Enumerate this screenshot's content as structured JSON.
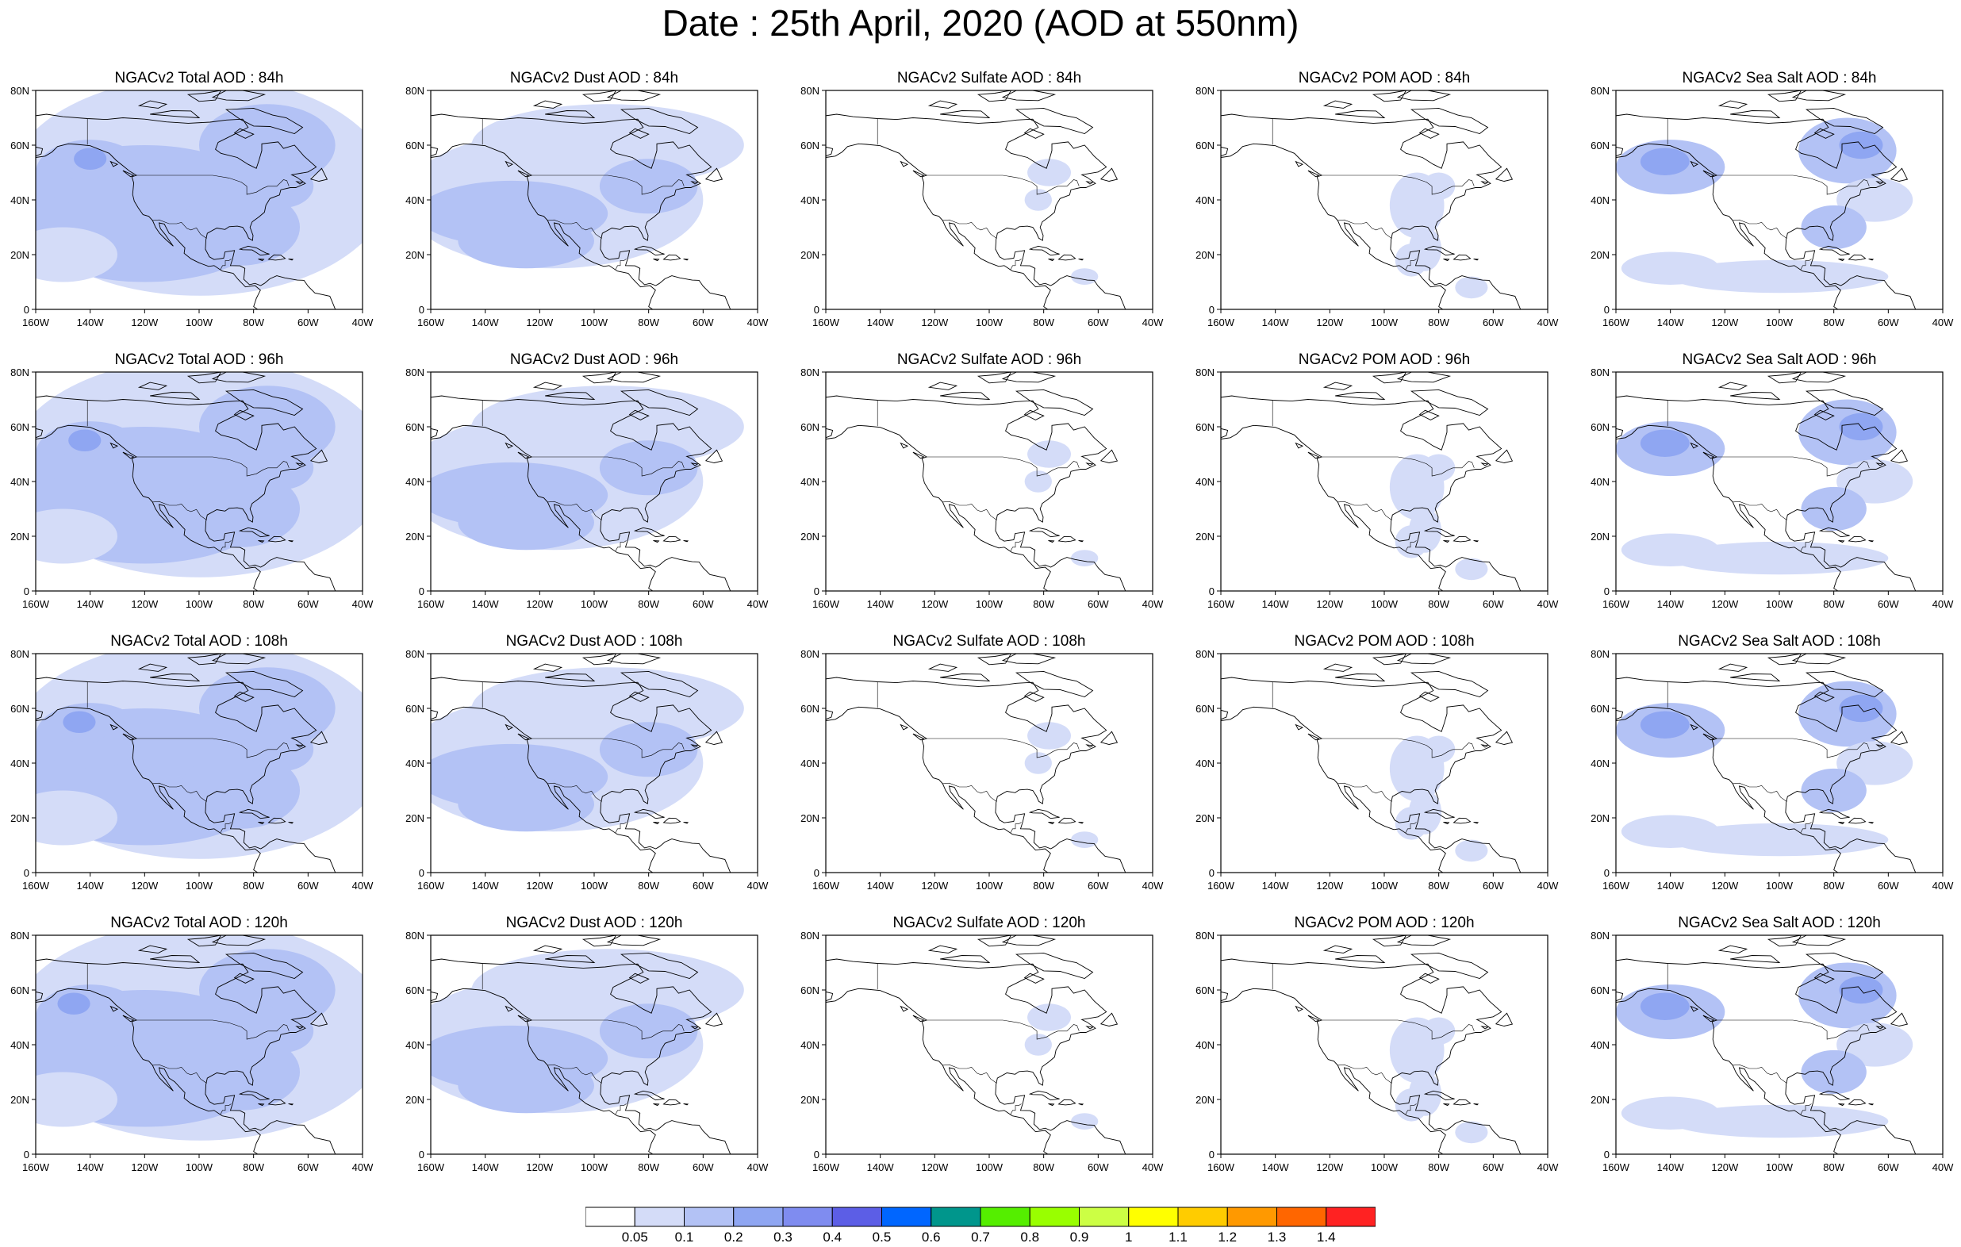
{
  "title": "Date : 25th April, 2020 (AOD at 550nm)",
  "axes": {
    "x_ticks": [
      "160W",
      "140W",
      "120W",
      "100W",
      "80W",
      "60W",
      "40W"
    ],
    "y_ticks": [
      "80N",
      "60N",
      "40N",
      "20N",
      "0"
    ],
    "lon_range": [
      -160,
      -40
    ],
    "lat_range": [
      0,
      80
    ]
  },
  "colorbar": {
    "colors": [
      "#ffffff",
      "#d4dcf8",
      "#b3c2f5",
      "#8fa6f2",
      "#7f8cf0",
      "#5c5ee6",
      "#0066ff",
      "#00968c",
      "#55ee00",
      "#99ff00",
      "#ccff44",
      "#ffff00",
      "#ffcc00",
      "#ff9900",
      "#ff6600",
      "#ff2222"
    ],
    "labels": [
      "0.05",
      "0.1",
      "0.2",
      "0.3",
      "0.4",
      "0.5",
      "0.6",
      "0.7",
      "0.8",
      "0.9",
      "1",
      "1.1",
      "1.2",
      "1.3",
      "1.4"
    ]
  },
  "panels": [
    {
      "title": "NGACv2 Total AOD : 84h",
      "kind": "total",
      "hour": 84
    },
    {
      "title": "NGACv2 Dust AOD : 84h",
      "kind": "dust",
      "hour": 84
    },
    {
      "title": "NGACv2 Sulfate AOD : 84h",
      "kind": "sulfate",
      "hour": 84
    },
    {
      "title": "NGACv2 POM AOD : 84h",
      "kind": "pom",
      "hour": 84
    },
    {
      "title": "NGACv2 Sea Salt AOD : 84h",
      "kind": "seasalt",
      "hour": 84
    },
    {
      "title": "NGACv2 Total AOD : 96h",
      "kind": "total",
      "hour": 96
    },
    {
      "title": "NGACv2 Dust AOD : 96h",
      "kind": "dust",
      "hour": 96
    },
    {
      "title": "NGACv2 Sulfate AOD : 96h",
      "kind": "sulfate",
      "hour": 96
    },
    {
      "title": "NGACv2 POM AOD : 96h",
      "kind": "pom",
      "hour": 96
    },
    {
      "title": "NGACv2 Sea Salt AOD : 96h",
      "kind": "seasalt",
      "hour": 96
    },
    {
      "title": "NGACv2 Total AOD : 108h",
      "kind": "total",
      "hour": 108
    },
    {
      "title": "NGACv2 Dust AOD : 108h",
      "kind": "dust",
      "hour": 108
    },
    {
      "title": "NGACv2 Sulfate AOD : 108h",
      "kind": "sulfate",
      "hour": 108
    },
    {
      "title": "NGACv2 POM AOD : 108h",
      "kind": "pom",
      "hour": 108
    },
    {
      "title": "NGACv2 Sea Salt AOD : 108h",
      "kind": "seasalt",
      "hour": 108
    },
    {
      "title": "NGACv2 Total AOD : 120h",
      "kind": "total",
      "hour": 120
    },
    {
      "title": "NGACv2 Dust AOD : 120h",
      "kind": "dust",
      "hour": 120
    },
    {
      "title": "NGACv2 Sulfate AOD : 120h",
      "kind": "sulfate",
      "hour": 120
    },
    {
      "title": "NGACv2 POM AOD : 120h",
      "kind": "pom",
      "hour": 120
    },
    {
      "title": "NGACv2 Sea Salt  AOD : 120h",
      "kind": "seasalt",
      "hour": 120
    }
  ]
}
